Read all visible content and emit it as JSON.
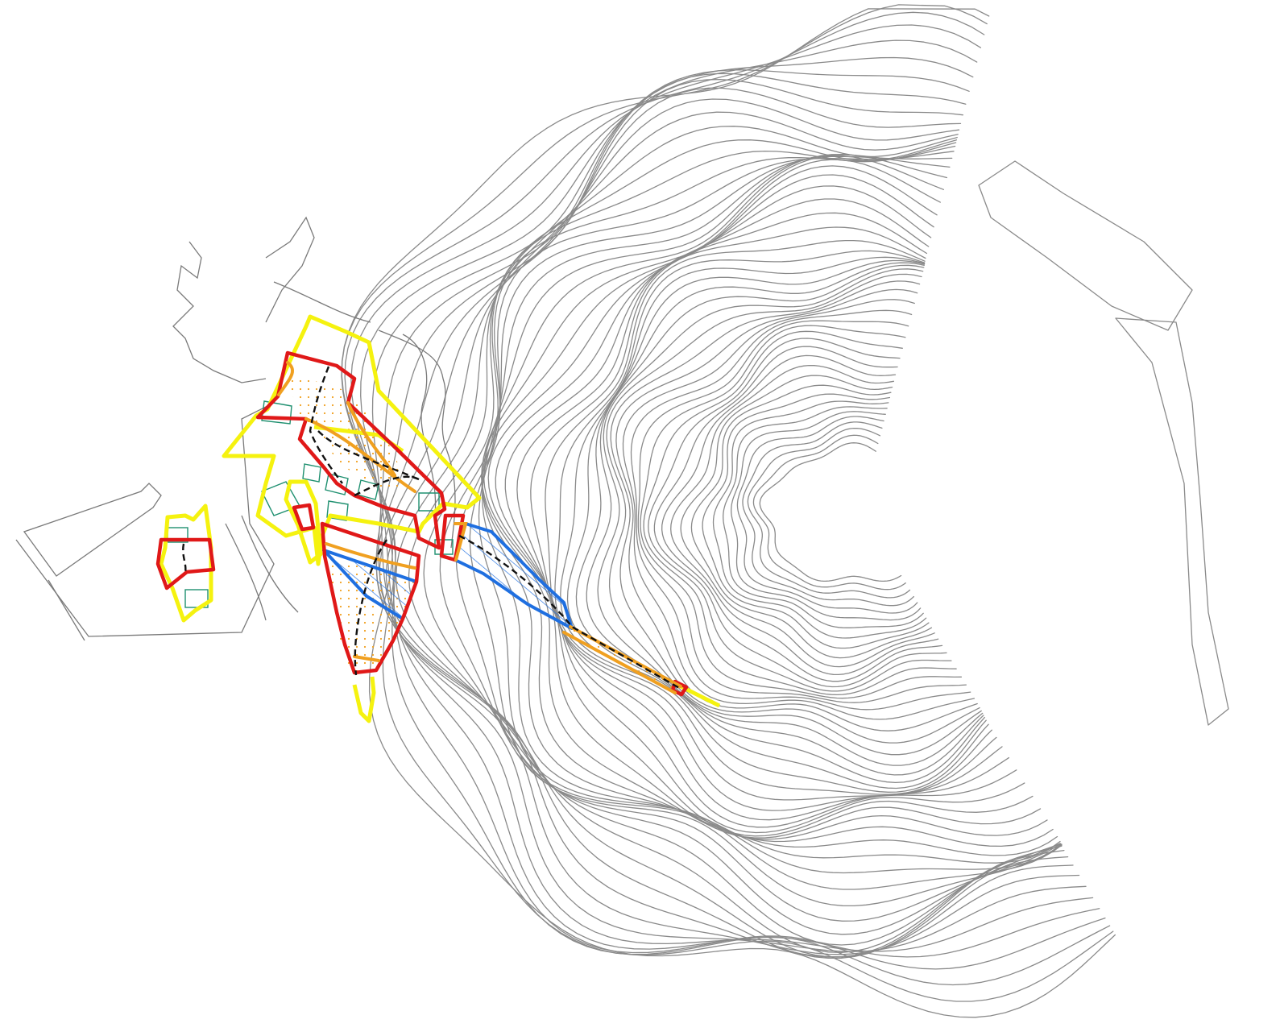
{
  "map": {
    "contour_color": "#8a8a8a",
    "boundary_color": "#f5f20f",
    "zone_color": "#e01818",
    "slope_color": "#f0a020",
    "hatch_color": "#1f6fe0",
    "building_color": "#1f9070",
    "centerline_color": "#111111"
  }
}
